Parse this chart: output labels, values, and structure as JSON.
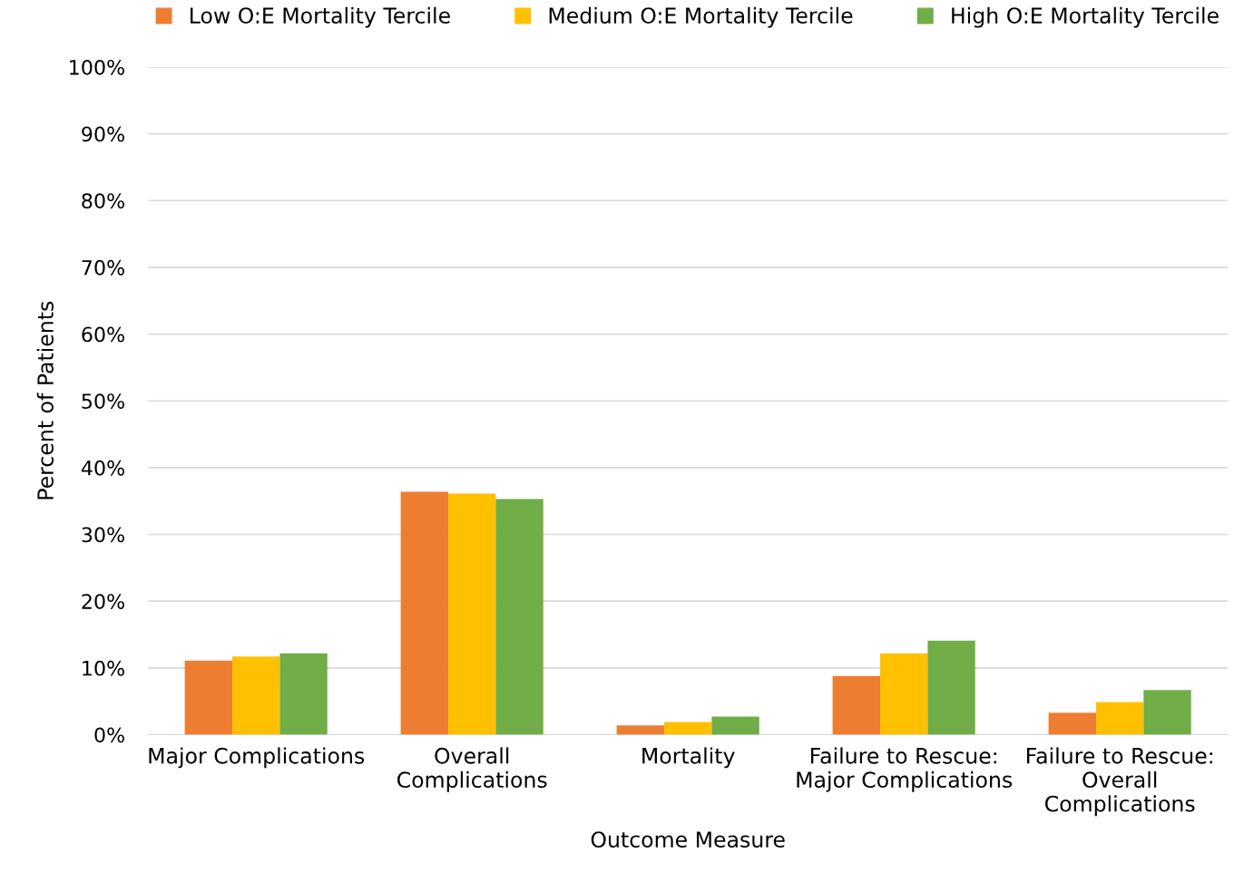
{
  "chart_data": {
    "type": "bar",
    "categories": [
      "Major Complications",
      "Overall\nComplications",
      "Mortality",
      "Failure to Rescue:\nMajor Complications",
      "Failure to Rescue:\nOverall\nComplications"
    ],
    "series": [
      {
        "name": "Low O:E Mortality Tercile",
        "color": "#ed7d31",
        "values": [
          11.1,
          36.4,
          1.4,
          8.8,
          3.3
        ]
      },
      {
        "name": "Medium O:E Mortality Tercile",
        "color": "#ffc000",
        "values": [
          11.7,
          36.1,
          1.9,
          12.2,
          4.9
        ]
      },
      {
        "name": "High O:E Mortality Tercile",
        "color": "#70ad47",
        "values": [
          12.2,
          35.3,
          2.7,
          14.1,
          6.7
        ]
      }
    ],
    "xlabel": "Outcome Measure",
    "ylabel": "Percent of Patients",
    "ylim": [
      0,
      100
    ],
    "yticks": [
      {
        "value": 0,
        "label": "0%"
      },
      {
        "value": 10,
        "label": "10%"
      },
      {
        "value": 20,
        "label": "20%"
      },
      {
        "value": 30,
        "label": "30%"
      },
      {
        "value": 40,
        "label": "40%"
      },
      {
        "value": 50,
        "label": "50%"
      },
      {
        "value": 60,
        "label": "60%"
      },
      {
        "value": 70,
        "label": "70%"
      },
      {
        "value": 80,
        "label": "80%"
      },
      {
        "value": 90,
        "label": "90%"
      },
      {
        "value": 100,
        "label": "100%"
      }
    ],
    "grid": "y",
    "legend": "top"
  }
}
